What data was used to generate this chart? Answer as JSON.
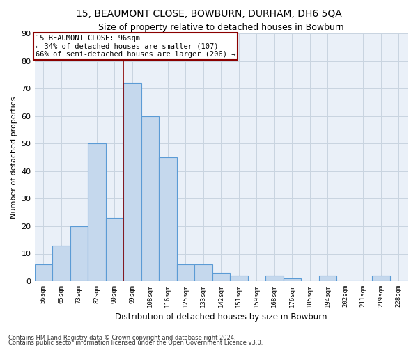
{
  "title1": "15, BEAUMONT CLOSE, BOWBURN, DURHAM, DH6 5QA",
  "title2": "Size of property relative to detached houses in Bowburn",
  "xlabel": "Distribution of detached houses by size in Bowburn",
  "ylabel": "Number of detached properties",
  "footer1": "Contains HM Land Registry data © Crown copyright and database right 2024.",
  "footer2": "Contains public sector information licensed under the Open Government Licence v3.0.",
  "bin_labels": [
    "56sqm",
    "65sqm",
    "73sqm",
    "82sqm",
    "90sqm",
    "99sqm",
    "108sqm",
    "116sqm",
    "125sqm",
    "133sqm",
    "142sqm",
    "151sqm",
    "159sqm",
    "168sqm",
    "176sqm",
    "185sqm",
    "194sqm",
    "202sqm",
    "211sqm",
    "219sqm",
    "228sqm"
  ],
  "bar_values": [
    6,
    13,
    20,
    50,
    23,
    72,
    60,
    45,
    6,
    6,
    3,
    2,
    0,
    2,
    1,
    0,
    2,
    0,
    0,
    2,
    0
  ],
  "bar_color": "#c5d8ed",
  "bar_edge_color": "#5b9bd5",
  "annotation_line1": "15 BEAUMONT CLOSE: 96sqm",
  "annotation_line2": "← 34% of detached houses are smaller (107)",
  "annotation_line3": "66% of semi-detached houses are larger (206) →",
  "red_line_bin": 5,
  "ylim": [
    0,
    90
  ],
  "yticks": [
    0,
    10,
    20,
    30,
    40,
    50,
    60,
    70,
    80,
    90
  ],
  "grid_color": "#c8d4e0",
  "background_color": "#eaf0f8",
  "title1_fontsize": 10,
  "title2_fontsize": 9,
  "ylabel_fontsize": 8,
  "xlabel_fontsize": 8.5
}
